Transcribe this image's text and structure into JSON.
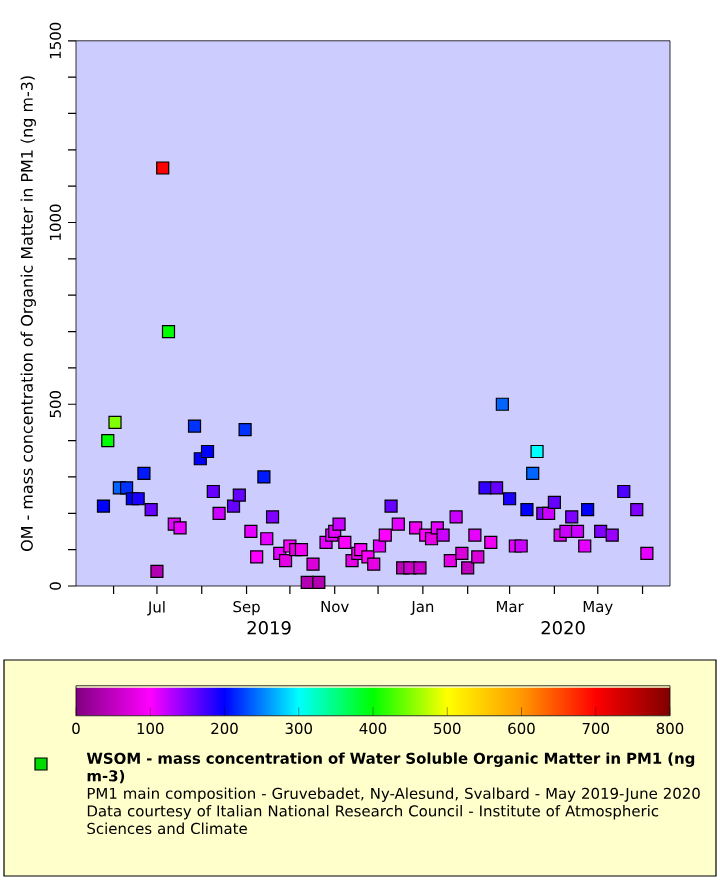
{
  "chart_data": {
    "type": "scatter",
    "ylabel": "OM - mass concentration of Organic Matter in PM1 (ng m-3)",
    "clabel": "WSOM - mass concentration of Water Soluble Organic Matter in PM1 (ng m-3)",
    "annotations": [
      "2019",
      "2020",
      "PM1 main composition - Gruvebadet, Ny-Alesund, Svalbard - May 2019-June 2020",
      "Data courtesy of Italian National Research Council - Institute of Atmospheric Sciences and Climate"
    ],
    "x": [
      "2019-05-25",
      "2019-05-28",
      "2019-06-02",
      "2019-06-05",
      "2019-06-10",
      "2019-06-14",
      "2019-06-18",
      "2019-06-22",
      "2019-06-27",
      "2019-07-01",
      "2019-07-05",
      "2019-07-09",
      "2019-07-13",
      "2019-07-17",
      "2019-07-27",
      "2019-07-31",
      "2019-08-05",
      "2019-08-09",
      "2019-08-13",
      "2019-08-23",
      "2019-08-27",
      "2019-08-31",
      "2019-09-04",
      "2019-09-08",
      "2019-09-13",
      "2019-09-15",
      "2019-09-19",
      "2019-09-24",
      "2019-09-28",
      "2019-10-01",
      "2019-10-05",
      "2019-10-09",
      "2019-10-13",
      "2019-10-17",
      "2019-10-21",
      "2019-10-26",
      "2019-10-30",
      "2019-11-01",
      "2019-11-04",
      "2019-11-08",
      "2019-11-13",
      "2019-11-17",
      "2019-11-19",
      "2019-11-24",
      "2019-11-28",
      "2019-12-02",
      "2019-12-06",
      "2019-12-10",
      "2019-12-15",
      "2019-12-18",
      "2019-12-23",
      "2019-12-27",
      "2019-12-30",
      "2020-01-03",
      "2020-01-07",
      "2020-01-11",
      "2020-01-15",
      "2020-01-20",
      "2020-01-24",
      "2020-01-28",
      "2020-02-01",
      "2020-02-06",
      "2020-02-08",
      "2020-02-13",
      "2020-02-17",
      "2020-02-21",
      "2020-02-25",
      "2020-03-01",
      "2020-03-05",
      "2020-03-09",
      "2020-03-13",
      "2020-03-17",
      "2020-03-20",
      "2020-03-24",
      "2020-03-28",
      "2020-04-01",
      "2020-04-05",
      "2020-04-09",
      "2020-04-13",
      "2020-04-17",
      "2020-04-22",
      "2020-04-24",
      "2020-05-03",
      "2020-05-11",
      "2020-05-19",
      "2020-05-28",
      "2020-06-04"
    ],
    "values": [
      220,
      400,
      450,
      270,
      270,
      240,
      240,
      310,
      210,
      40,
      1150,
      700,
      170,
      160,
      440,
      350,
      370,
      260,
      200,
      220,
      250,
      430,
      150,
      80,
      300,
      130,
      190,
      90,
      70,
      110,
      100,
      100,
      10,
      60,
      10,
      120,
      140,
      150,
      170,
      120,
      70,
      90,
      100,
      80,
      60,
      110,
      140,
      220,
      170,
      50,
      50,
      160,
      50,
      140,
      130,
      160,
      140,
      70,
      190,
      90,
      50,
      140,
      80,
      270,
      120,
      270,
      500,
      240,
      110,
      110,
      210,
      310,
      370,
      200,
      200,
      230,
      140,
      150,
      190,
      150,
      110,
      210,
      150,
      140,
      260,
      210,
      90
    ],
    "cvalues": [
      200,
      400,
      450,
      240,
      220,
      200,
      190,
      210,
      160,
      40,
      700,
      400,
      110,
      110,
      220,
      200,
      200,
      160,
      120,
      160,
      160,
      220,
      110,
      100,
      210,
      110,
      150,
      110,
      80,
      100,
      80,
      90,
      40,
      70,
      40,
      110,
      110,
      110,
      120,
      100,
      80,
      90,
      100,
      100,
      80,
      110,
      100,
      160,
      110,
      50,
      60,
      90,
      60,
      100,
      80,
      110,
      120,
      80,
      120,
      70,
      50,
      110,
      70,
      180,
      90,
      160,
      240,
      190,
      110,
      120,
      200,
      240,
      300,
      150,
      120,
      160,
      110,
      120,
      150,
      120,
      110,
      200,
      150,
      140,
      170,
      150,
      110
    ],
    "clim": [
      0,
      800
    ],
    "cticks": [
      0,
      100,
      200,
      300,
      400,
      500,
      600,
      700,
      800
    ],
    "xlim": [
      "2019-05-06",
      "2020-06-20"
    ],
    "xticks": [
      {
        "value": "2019-06-01",
        "label": null
      },
      {
        "value": "2019-07-01",
        "label": "Jul"
      },
      {
        "value": "2019-08-01",
        "label": null
      },
      {
        "value": "2019-09-01",
        "label": "Sep"
      },
      {
        "value": "2019-10-01",
        "label": null
      },
      {
        "value": "2019-11-01",
        "label": "Nov"
      },
      {
        "value": "2019-12-01",
        "label": null
      },
      {
        "value": "2020-01-01",
        "label": "Jan"
      },
      {
        "value": "2020-02-01",
        "label": null
      },
      {
        "value": "2020-03-01",
        "label": "Mar"
      },
      {
        "value": "2020-04-01",
        "label": null
      },
      {
        "value": "2020-05-01",
        "label": "May"
      },
      {
        "value": "2020-06-01",
        "label": null
      }
    ],
    "ylim": [
      0,
      1500
    ],
    "yticks": [
      0,
      {
        "value": 100,
        "label": null
      },
      {
        "value": 200,
        "label": null
      },
      {
        "value": 300,
        "label": null
      },
      {
        "value": 400,
        "label": null
      },
      500,
      {
        "value": 600,
        "label": null
      },
      {
        "value": 700,
        "label": null
      },
      {
        "value": 800,
        "label": null
      },
      {
        "value": 900,
        "label": null
      },
      1000,
      {
        "value": 1100,
        "label": null
      },
      {
        "value": 1200,
        "label": null
      },
      {
        "value": 1300,
        "label": null
      },
      {
        "value": 1400,
        "label": null
      },
      1500
    ],
    "marker": "square"
  }
}
